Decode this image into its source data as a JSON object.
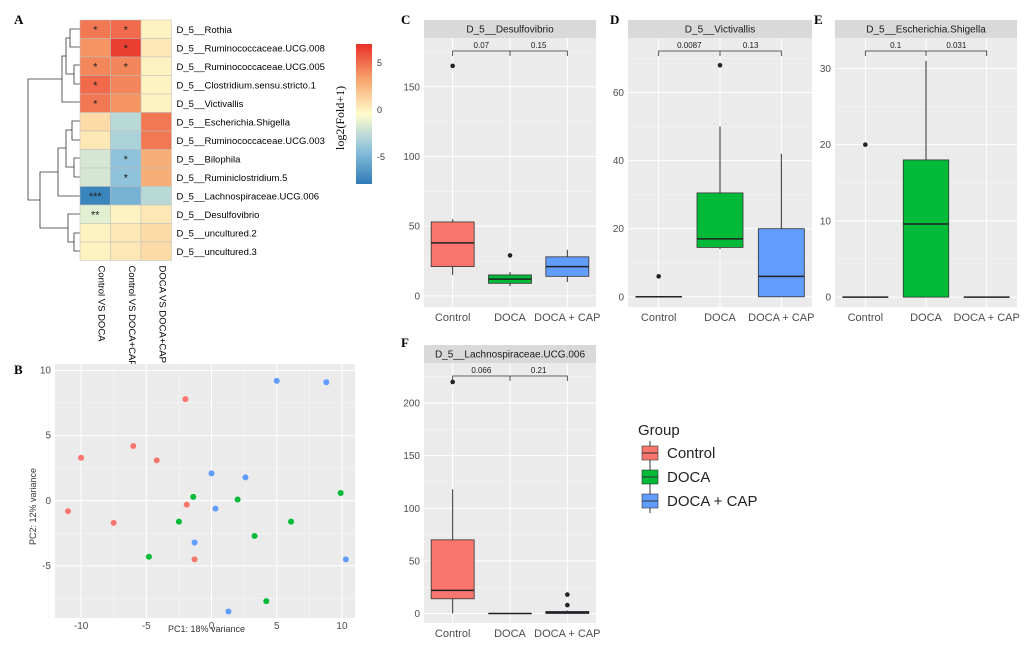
{
  "panel_labels": {
    "A": "A",
    "B": "B",
    "C": "C",
    "D": "D",
    "E": "E",
    "F": "F"
  },
  "colors": {
    "control": "#F8766D",
    "doca": "#00BA38",
    "docacap": "#619CFF",
    "panel_bg": "#EBEBEB",
    "strip_bg": "#D9D9D9",
    "grid": "#FFFFFF"
  },
  "legend": {
    "title": "Group",
    "items": [
      {
        "label": "Control",
        "color": "#F8766D"
      },
      {
        "label": "DOCA",
        "color": "#00BA38"
      },
      {
        "label": "DOCA + CAP",
        "color": "#619CFF"
      }
    ]
  },
  "chart_data": [
    {
      "id": "A",
      "type": "heatmap",
      "title": "",
      "rows": [
        "D_5__Rothia",
        "D_5__Ruminococcaceae.UCG.008",
        "D_5__Ruminococcaceae.UCG.005",
        "D_5__Clostridium.sensu.stricto.1",
        "D_5__Victivallis",
        "D_5__Escherichia.Shigella",
        "D_5__Ruminococcaceae.UCG.003",
        "D_5__Bilophila",
        "D_5__Ruminiclostridium.5",
        "D_5__Lachnospiraceae.UCG.006",
        "D_5__Desulfovibrio",
        "D_5__uncultured.2",
        "D_5__uncultured.3"
      ],
      "columns": [
        "Control VS DOCA",
        "Control VS DOCA+CAP",
        "DOCA VS DOCA+CAP"
      ],
      "values": [
        [
          5.5,
          6.0,
          0.5
        ],
        [
          4.5,
          7.5,
          1.0
        ],
        [
          5.0,
          5.0,
          0.5
        ],
        [
          6.0,
          5.0,
          0.5
        ],
        [
          5.5,
          4.5,
          0.5
        ],
        [
          1.5,
          -2.5,
          5.5
        ],
        [
          1.0,
          -3.0,
          5.5
        ],
        [
          -1.5,
          -4.0,
          3.5
        ],
        [
          -1.5,
          -4.0,
          3.5
        ],
        [
          -7.5,
          -5.0,
          -2.5
        ],
        [
          -1.0,
          0.5,
          1.0
        ],
        [
          0.5,
          1.0,
          1.5
        ],
        [
          0.5,
          1.0,
          1.5
        ]
      ],
      "stars": [
        [
          "*",
          "*",
          ""
        ],
        [
          "",
          "*",
          ""
        ],
        [
          "*",
          "*",
          ""
        ],
        [
          "*",
          "",
          ""
        ],
        [
          "*",
          "",
          ""
        ],
        [
          "",
          "",
          ""
        ],
        [
          "",
          "",
          ""
        ],
        [
          "",
          "*",
          ""
        ],
        [
          "",
          "*",
          ""
        ],
        [
          "***",
          "",
          ""
        ],
        [
          "**",
          "",
          ""
        ],
        [
          "",
          "",
          ""
        ],
        [
          "",
          "",
          ""
        ]
      ],
      "colorbar": {
        "title": "log2(Fold+1)",
        "ticks": [
          "5",
          "0",
          "-5"
        ],
        "range": [
          -8,
          8
        ]
      }
    },
    {
      "id": "B",
      "type": "scatter",
      "xlabel": "PC1: 18% variance",
      "ylabel": "PC2: 12% variance",
      "xlim": [
        -12,
        11
      ],
      "ylim": [
        -9,
        10.5
      ],
      "xticks": [
        "-10",
        "-5",
        "0",
        "5",
        "10"
      ],
      "yticks": [
        "10",
        "5",
        "0",
        "-5"
      ],
      "series": [
        {
          "name": "Control",
          "points": [
            [
              -11,
              -0.8
            ],
            [
              -10,
              3.3
            ],
            [
              -7.5,
              -1.7
            ],
            [
              -6,
              4.2
            ],
            [
              -4.2,
              3.1
            ],
            [
              -2,
              7.8
            ],
            [
              -1.9,
              -0.3
            ],
            [
              -1.3,
              -4.5
            ]
          ]
        },
        {
          "name": "DOCA",
          "points": [
            [
              -4.8,
              -4.3
            ],
            [
              -2.5,
              -1.6
            ],
            [
              -1.4,
              0.3
            ],
            [
              2,
              0.1
            ],
            [
              3.3,
              -2.7
            ],
            [
              4.2,
              -7.7
            ],
            [
              6.1,
              -1.6
            ],
            [
              9.9,
              0.6
            ]
          ]
        },
        {
          "name": "DOCA + CAP",
          "points": [
            [
              -1.3,
              -3.2
            ],
            [
              0,
              2.1
            ],
            [
              0.3,
              -0.6
            ],
            [
              1.3,
              -8.5
            ],
            [
              2.6,
              1.8
            ],
            [
              5,
              9.2
            ],
            [
              8.8,
              9.1
            ],
            [
              10.3,
              -4.5
            ]
          ]
        }
      ]
    },
    {
      "id": "C",
      "type": "box",
      "strip": "D_5__Desulfovibrio",
      "categories": [
        "Control",
        "DOCA",
        "DOCA + CAP"
      ],
      "ylim": [
        -8,
        185
      ],
      "yticks": [
        0,
        50,
        100,
        150
      ],
      "boxes": [
        {
          "group": "Control",
          "min": 15,
          "q1": 21,
          "median": 38,
          "q3": 53,
          "max": 55,
          "outliers": [
            165
          ]
        },
        {
          "group": "DOCA",
          "min": 7,
          "q1": 9,
          "median": 12,
          "q3": 15,
          "max": 17,
          "outliers": [
            29
          ]
        },
        {
          "group": "DOCA + CAP",
          "min": 10,
          "q1": 14,
          "median": 21,
          "q3": 28,
          "max": 33,
          "outliers": []
        }
      ],
      "pvalues": [
        "0.07",
        "0.15"
      ]
    },
    {
      "id": "D",
      "type": "box",
      "strip": "D_5__Victivallis",
      "categories": [
        "Control",
        "DOCA",
        "DOCA + CAP"
      ],
      "ylim": [
        -3,
        76
      ],
      "yticks": [
        0,
        20,
        40,
        60
      ],
      "boxes": [
        {
          "group": "Control",
          "min": 0,
          "q1": 0,
          "median": 0,
          "q3": 0,
          "max": 0,
          "outliers": [
            6
          ]
        },
        {
          "group": "DOCA",
          "min": 14,
          "q1": 14.5,
          "median": 17,
          "q3": 30.5,
          "max": 50,
          "outliers": [
            68
          ]
        },
        {
          "group": "DOCA + CAP",
          "min": 0,
          "q1": 0,
          "median": 6,
          "q3": 20,
          "max": 42,
          "outliers": []
        }
      ],
      "pvalues": [
        "0.0087",
        "0.13"
      ]
    },
    {
      "id": "E",
      "type": "box",
      "strip": "D_5__Escherichia.Shigella",
      "categories": [
        "Control",
        "DOCA",
        "DOCA + CAP"
      ],
      "ylim": [
        -1.3,
        34
      ],
      "yticks": [
        0,
        10,
        20,
        30
      ],
      "boxes": [
        {
          "group": "Control",
          "min": 0,
          "q1": 0,
          "median": 0,
          "q3": 0,
          "max": 0,
          "outliers": [
            20
          ]
        },
        {
          "group": "DOCA",
          "min": 0,
          "q1": 0,
          "median": 9.6,
          "q3": 18,
          "max": 31,
          "outliers": []
        },
        {
          "group": "DOCA + CAP",
          "min": 0,
          "q1": 0,
          "median": 0,
          "q3": 0,
          "max": 0,
          "outliers": []
        }
      ],
      "pvalues": [
        "0.1",
        "0.031"
      ]
    },
    {
      "id": "F",
      "type": "box",
      "strip": "D_5__Lachnospiraceae.UCG.006",
      "categories": [
        "Control",
        "DOCA",
        "DOCA + CAP"
      ],
      "ylim": [
        -9,
        238
      ],
      "yticks": [
        0,
        50,
        100,
        150,
        200
      ],
      "boxes": [
        {
          "group": "Control",
          "min": 0,
          "q1": 14,
          "median": 22,
          "q3": 70,
          "max": 118,
          "outliers": [
            220
          ]
        },
        {
          "group": "DOCA",
          "min": 0,
          "q1": 0,
          "median": 0,
          "q3": 0,
          "max": 0,
          "outliers": []
        },
        {
          "group": "DOCA + CAP",
          "min": 0,
          "q1": 0,
          "median": 1,
          "q3": 2,
          "max": 3,
          "outliers": [
            8,
            18
          ]
        }
      ],
      "pvalues": [
        "0.066",
        "0.21"
      ]
    }
  ]
}
